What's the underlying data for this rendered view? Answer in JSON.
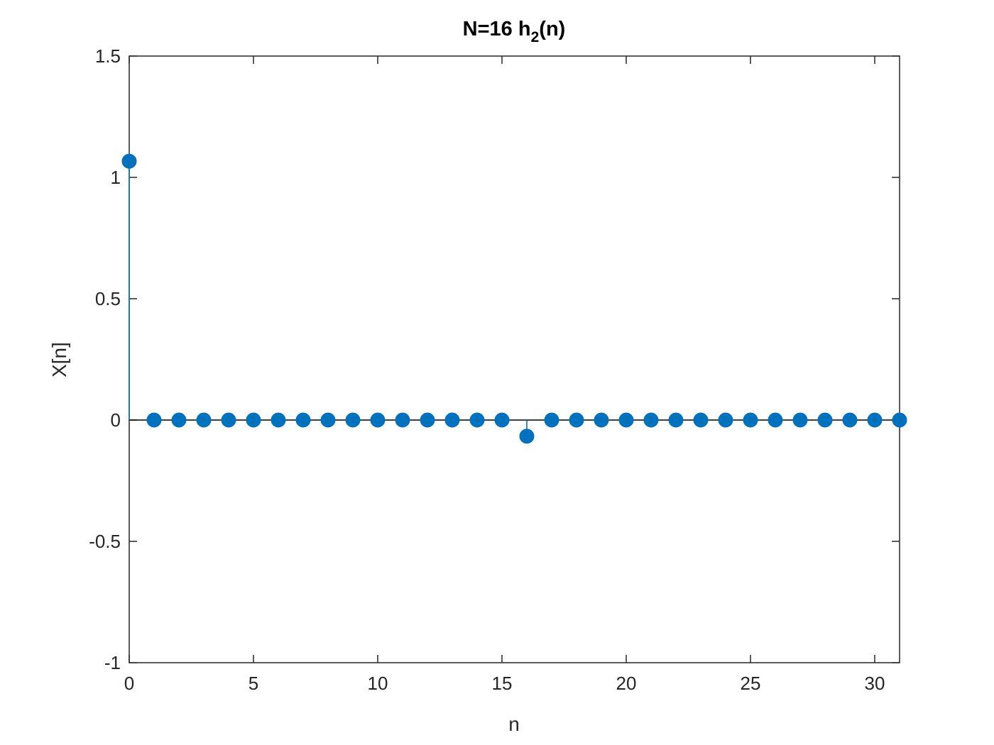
{
  "chart_data": {
    "type": "stem",
    "title": {
      "main": "N=16 h",
      "subscript": "2",
      "suffix": "(n)"
    },
    "xlabel": "n",
    "ylabel": "X[n]",
    "xlim": [
      0,
      31
    ],
    "ylim": [
      -1,
      1.5
    ],
    "xticks": [
      0,
      5,
      10,
      15,
      20,
      25,
      30
    ],
    "yticks": [
      -1,
      -0.5,
      0,
      0.5,
      1,
      1.5
    ],
    "xtick_labels": [
      "0",
      "5",
      "10",
      "15",
      "20",
      "25",
      "30"
    ],
    "ytick_labels": [
      "-1",
      "-0.5",
      "0",
      "0.5",
      "1",
      "1.5"
    ],
    "grid": false,
    "series": [
      {
        "color": "#0072BD",
        "x": [
          0,
          1,
          2,
          3,
          4,
          5,
          6,
          7,
          8,
          9,
          10,
          11,
          12,
          13,
          14,
          15,
          16,
          17,
          18,
          19,
          20,
          21,
          22,
          23,
          24,
          25,
          26,
          27,
          28,
          29,
          30,
          31
        ],
        "y": [
          1.0667,
          0,
          0,
          0,
          0,
          0,
          0,
          0,
          0,
          0,
          0,
          0,
          0,
          0,
          0,
          0,
          -0.0667,
          0,
          0,
          0,
          0,
          0,
          0,
          0,
          0,
          0,
          0,
          0,
          0,
          0,
          0,
          0
        ]
      }
    ]
  }
}
